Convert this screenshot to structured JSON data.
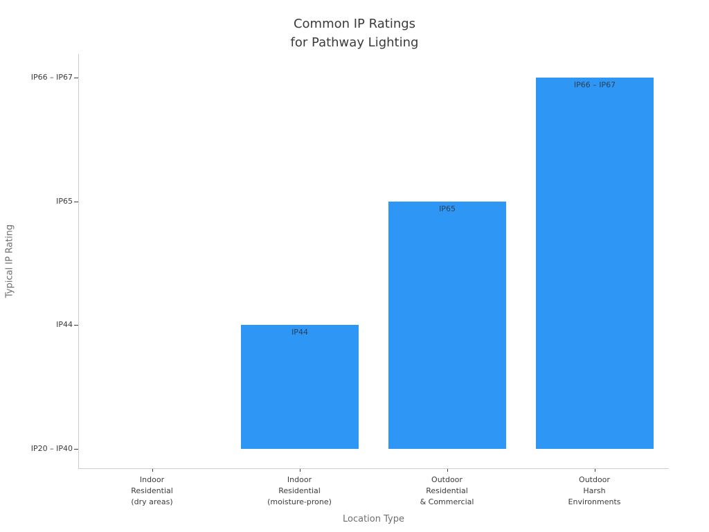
{
  "chart_data": {
    "type": "bar",
    "title": "Common IP Ratings for Pathway Lighting",
    "title_lines": [
      "Common IP Ratings",
      "for Pathway Lighting"
    ],
    "xlabel": "Location Type",
    "ylabel": "Typical IP Rating",
    "categories": [
      "Indoor Residential (dry areas)",
      "Indoor Residential (moisture-prone)",
      "Outdoor Residential & Commercial",
      "Outdoor Harsh Environments"
    ],
    "category_lines": [
      [
        "Indoor",
        "Residential",
        "(dry areas)"
      ],
      [
        "Indoor",
        "Residential",
        "(moisture-prone)"
      ],
      [
        "Outdoor",
        "Residential",
        "& Commercial"
      ],
      [
        "Outdoor",
        "Harsh",
        "Environments"
      ]
    ],
    "values": [
      0,
      1,
      2,
      3
    ],
    "value_labels": [
      "",
      "IP44",
      "IP65",
      "IP66 – IP67"
    ],
    "ytick_values": [
      0,
      1,
      2,
      3
    ],
    "ytick_labels": [
      "IP20 – IP40",
      "IP44",
      "IP65",
      "IP66 – IP67"
    ],
    "ylim_units": [
      -0.16,
      3.17
    ],
    "grid": false,
    "legend": "none",
    "bar_color": "#2E96F5",
    "colors": {
      "background": "#ffffff",
      "bar_fill": "#2E96F5",
      "bar_label_text": "#2a3f55",
      "title_text": "#3a3a3a",
      "tick_text": "#3b3b3b",
      "axis_label_text": "#6e6e6e",
      "spine": "#cccccc"
    }
  }
}
